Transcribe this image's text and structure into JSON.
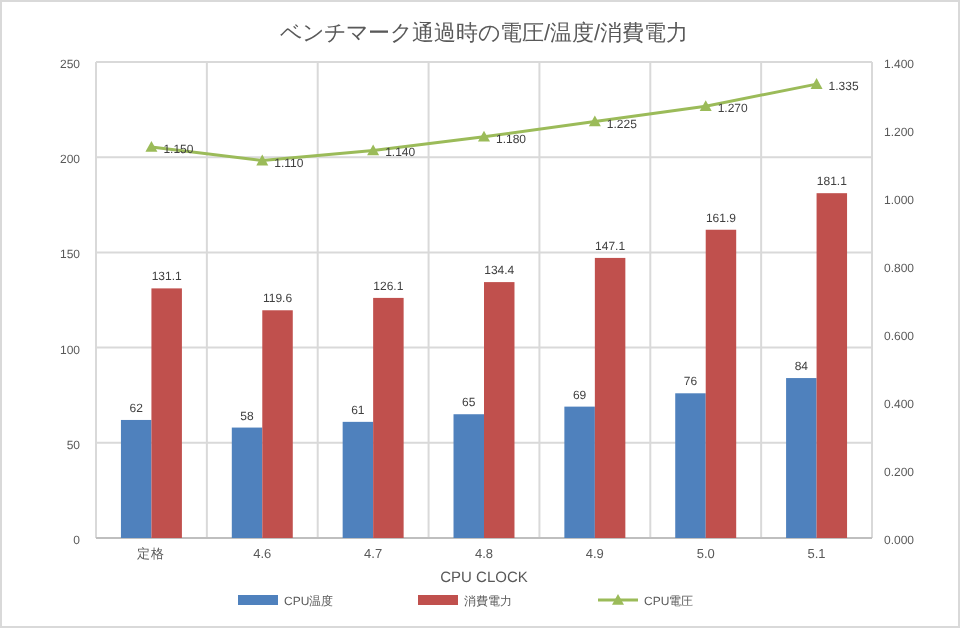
{
  "chart_data": {
    "type": "bar",
    "title": "ベンチマーク通過時の電圧/温度/消費電力",
    "xlabel": "CPU CLOCK",
    "categories": [
      "定格",
      "4.6",
      "4.7",
      "4.8",
      "4.9",
      "5.0",
      "5.1"
    ],
    "series": [
      {
        "name": "CPU温度",
        "color": "#4f81bd",
        "values": [
          62,
          58,
          61,
          65,
          69,
          76,
          84
        ],
        "value_labels": [
          "62",
          "58",
          "61",
          "65",
          "69",
          "76",
          "84"
        ]
      },
      {
        "name": "消費電力",
        "color": "#c0504d",
        "values": [
          131.1,
          119.6,
          126.1,
          134.4,
          147.1,
          161.9,
          181.1
        ],
        "value_labels": [
          "131.1",
          "119.6",
          "126.1",
          "134.4",
          "147.1",
          "161.9",
          "181.1"
        ]
      },
      {
        "name": "CPU電圧",
        "color": "#9bbb59",
        "type": "line",
        "axis": "y2",
        "marker": "triangle",
        "values": [
          1.15,
          1.11,
          1.14,
          1.18,
          1.225,
          1.27,
          1.335
        ],
        "value_labels": [
          "1.150",
          "1.110",
          "1.140",
          "1.180",
          "1.225",
          "1.270",
          "1.335"
        ]
      }
    ],
    "ylim": [
      0,
      250
    ],
    "yticks": [
      0,
      50,
      100,
      150,
      200,
      250
    ],
    "y2lim": [
      0,
      1.4
    ],
    "y2ticks": [
      {
        "value": 0,
        "label": "0.000"
      },
      {
        "value": 0.2,
        "label": "0.200"
      },
      {
        "value": 0.4,
        "label": "0.400"
      },
      {
        "value": 0.6,
        "label": "0.600"
      },
      {
        "value": 0.8,
        "label": "0.800"
      },
      {
        "value": 1.0,
        "label": "1.000"
      },
      {
        "value": 1.2,
        "label": "1.200"
      },
      {
        "value": 1.4,
        "label": "1.400"
      }
    ],
    "grid": true,
    "legend": "bottom"
  }
}
